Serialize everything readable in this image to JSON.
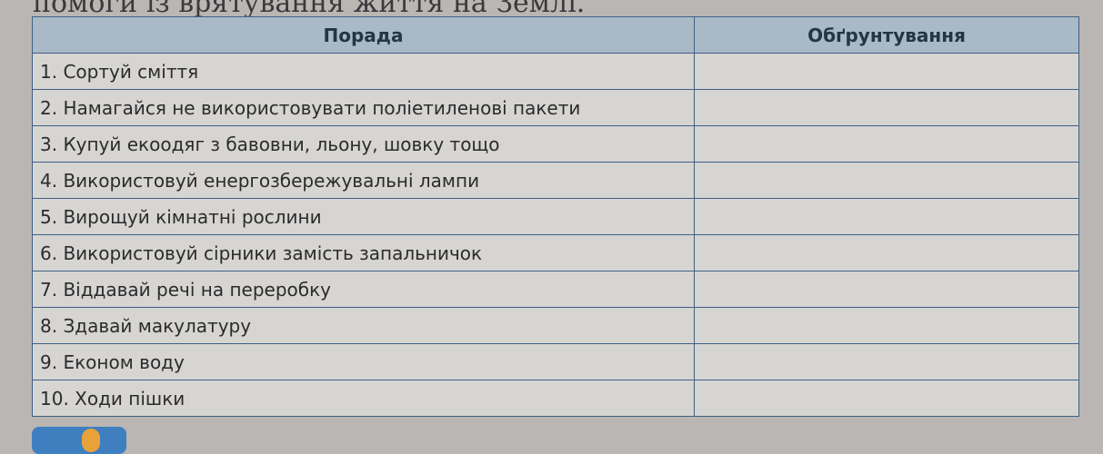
{
  "caption": "помоги із врятування життя на Землі.",
  "table": {
    "headers": [
      "Порада",
      "Обґрунтування"
    ],
    "rows": [
      "1. Сортуй сміття",
      "2. Намагайся не використовувати поліетиленові пакети",
      "3. Купуй екоодяг з бавовни, льону, шовку тощо",
      "4. Використовуй енергозбережувальні лампи",
      "5. Вирощуй кімнатні рослини",
      "6. Використовуй сірники замість запальничок",
      "7. Віддавай речі на переробку",
      "8. Здавай макулатуру",
      "9. Економ воду",
      "10. Ходи пішки"
    ]
  }
}
